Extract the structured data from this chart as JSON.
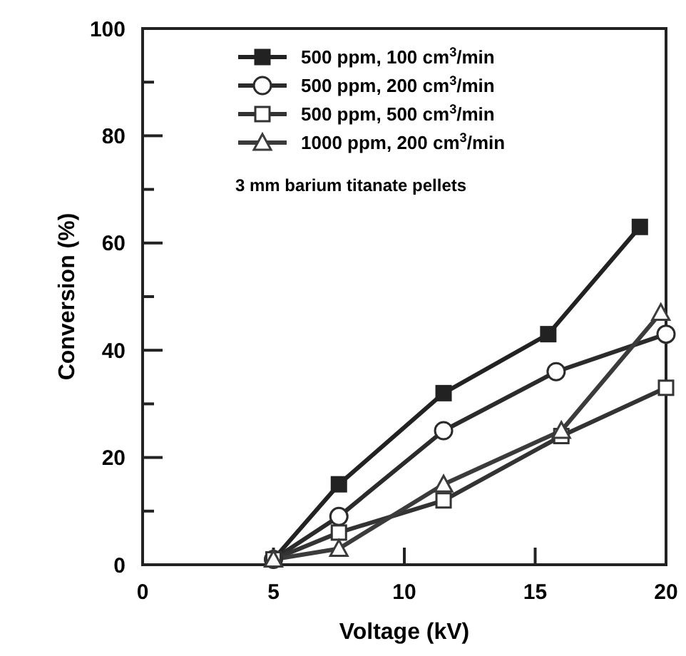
{
  "chart_data": {
    "type": "line",
    "xlabel": "Voltage (kV)",
    "ylabel": "Conversion (%)",
    "xlim": [
      0,
      20
    ],
    "ylim": [
      0,
      100
    ],
    "xticks": [
      0,
      5,
      10,
      15,
      20
    ],
    "yticks": [
      0,
      {
        "value": 10,
        "label": null
      },
      20,
      {
        "value": 30,
        "label": null
      },
      40,
      {
        "value": 50,
        "label": null
      },
      60,
      {
        "value": 70,
        "label": null
      },
      80,
      {
        "value": 90,
        "label": null
      },
      100
    ],
    "legend": "top",
    "grid": false,
    "line_style": "solid",
    "annotations": [
      "3 mm barium titanate pellets"
    ],
    "series": [
      {
        "name": "500 ppm, 100 cm$^{3}$/min",
        "color": "#222222",
        "marker": "square-filled",
        "x": [
          5,
          7.5,
          11.5,
          15.5,
          19
        ],
        "values": [
          1,
          15,
          32,
          43,
          63
        ]
      },
      {
        "name": "500 ppm, 200 cm$^{3}$/min",
        "color": "#2b2b2b",
        "marker": "circle",
        "x": [
          5,
          7.5,
          11.5,
          15.8,
          20
        ],
        "values": [
          1,
          9,
          25,
          36,
          43
        ]
      },
      {
        "name": "500 ppm, 500 cm$^{3}$/min",
        "color": "#333333",
        "marker": "square",
        "x": [
          5,
          7.5,
          11.5,
          16,
          20
        ],
        "values": [
          1,
          6,
          12,
          24,
          33
        ]
      },
      {
        "name": "1000 ppm, 200 cm$^{3}$/min",
        "color": "#3b3b3b",
        "marker": "triangle",
        "x": [
          5,
          7.5,
          11.5,
          16,
          19.8
        ],
        "values": [
          1,
          3,
          15,
          25,
          47
        ]
      }
    ]
  }
}
